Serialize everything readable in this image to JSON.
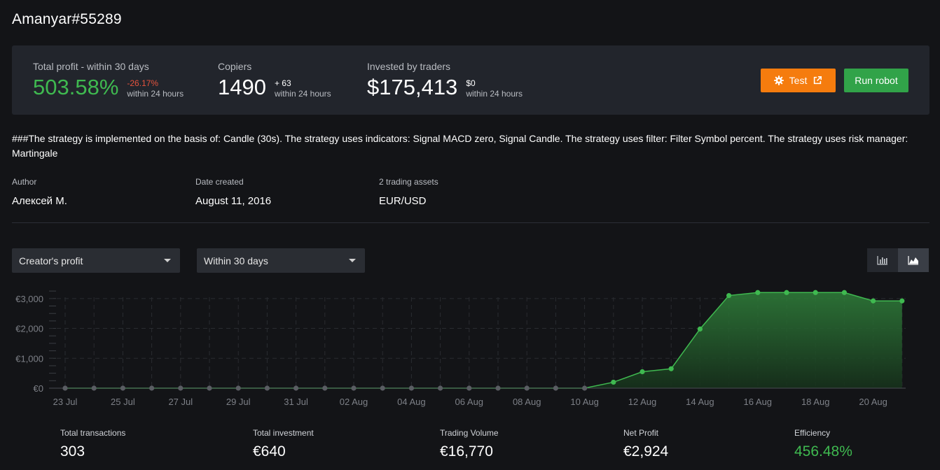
{
  "robot": {
    "title": "Amanyar#55289"
  },
  "stats": {
    "profit": {
      "label": "Total profit - within 30 days",
      "value": "503.58%",
      "delta": "-26.17%",
      "delta_sub": "within 24 hours"
    },
    "copiers": {
      "label": "Copiers",
      "value": "1490",
      "delta": "+ 63",
      "delta_sub": "within 24 hours"
    },
    "invested": {
      "label": "Invested by traders",
      "value": "$175,413",
      "delta": "$0",
      "delta_sub": "within 24 hours"
    }
  },
  "actions": {
    "test_label": "Test",
    "run_label": "Run robot"
  },
  "colors": {
    "accent_orange": "#f57c0e",
    "accent_green": "#31a349",
    "profit_green": "#3fb950",
    "negative_red": "#e5533d"
  },
  "description": "###The strategy is implemented on the basis of: Candle (30s). The strategy uses indicators: Signal MACD zero, Signal Candle. The strategy uses filter: Filter Symbol percent. The strategy uses risk manager: Martingale",
  "meta": {
    "author": {
      "label": "Author",
      "value": "Алексей М."
    },
    "date": {
      "label": "Date created",
      "value": "August 11, 2016"
    },
    "assets": {
      "label": "2 trading assets",
      "value": "EUR/USD"
    }
  },
  "filters": {
    "metric": {
      "selected": "Creator's profit"
    },
    "period": {
      "selected": "Within 30 days"
    }
  },
  "view_toggle": {
    "options": [
      "bar-chart-icon",
      "area-chart-icon"
    ],
    "active": "area-chart-icon"
  },
  "chart_data": {
    "type": "area",
    "x": [
      "23 Jul",
      "24 Jul",
      "25 Jul",
      "26 Jul",
      "27 Jul",
      "28 Jul",
      "29 Jul",
      "30 Jul",
      "31 Jul",
      "01 Aug",
      "02 Aug",
      "03 Aug",
      "04 Aug",
      "05 Aug",
      "06 Aug",
      "07 Aug",
      "08 Aug",
      "09 Aug",
      "10 Aug",
      "11 Aug",
      "12 Aug",
      "13 Aug",
      "14 Aug",
      "15 Aug",
      "16 Aug",
      "17 Aug",
      "18 Aug",
      "19 Aug",
      "20 Aug",
      "21 Aug"
    ],
    "x_tick_labels": [
      "23 Jul",
      "25 Jul",
      "27 Jul",
      "29 Jul",
      "31 Jul",
      "02 Aug",
      "04 Aug",
      "06 Aug",
      "08 Aug",
      "10 Aug",
      "12 Aug",
      "14 Aug",
      "16 Aug",
      "18 Aug",
      "20 Aug"
    ],
    "values": [
      0,
      0,
      0,
      0,
      0,
      0,
      0,
      0,
      0,
      0,
      0,
      0,
      0,
      0,
      0,
      0,
      0,
      0,
      0,
      200,
      550,
      650,
      1980,
      3100,
      3200,
      3200,
      3200,
      3200,
      2920,
      2920
    ],
    "y_ticks": [
      0,
      1000,
      2000,
      3000
    ],
    "y_tick_labels": [
      "€0",
      "€1,000",
      "€2,000",
      "€3,000"
    ],
    "ylim": [
      0,
      3300
    ],
    "grid": true,
    "series_color": "#3fb950"
  },
  "kpis": [
    {
      "label": "Total transactions",
      "value": "303"
    },
    {
      "label": "Total investment",
      "value": "€640"
    },
    {
      "label": "Trading Volume",
      "value": "€16,770"
    },
    {
      "label": "Net Profit",
      "value": "€2,924"
    },
    {
      "label": "Efficiency",
      "value": "456.48%"
    }
  ]
}
